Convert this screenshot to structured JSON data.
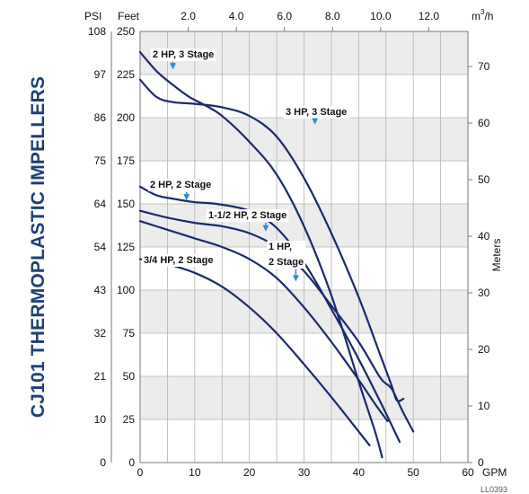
{
  "chart_data": {
    "type": "line",
    "title": "CJ101 THERMOPLASTIC IMPELLERS",
    "figure_id": "LL0393",
    "grid": true,
    "x_axis": {
      "unit": "GPM",
      "range": [
        0,
        60
      ],
      "ticks": [
        "0",
        "10",
        "20",
        "30",
        "40",
        "50",
        "60"
      ]
    },
    "top_axis": {
      "unit": "m3/h",
      "unit_main": "m",
      "unit_sup": "3",
      "unit_rest": "/h",
      "ticks": [
        "2.0",
        "4.0",
        "6.0",
        "8.0",
        "10.0",
        "12.0"
      ],
      "tick_values": [
        2,
        4,
        6,
        8,
        10,
        12
      ]
    },
    "y_axis_feet": {
      "unit": "Feet",
      "range": [
        0,
        250
      ],
      "ticks": [
        "0",
        "25",
        "50",
        "75",
        "100",
        "125",
        "150",
        "175",
        "200",
        "225",
        "250"
      ]
    },
    "y_axis_psi": {
      "unit": "PSI",
      "ticks": [
        "0",
        "10",
        "21",
        "32",
        "43",
        "54",
        "64",
        "75",
        "86",
        "97",
        "108"
      ]
    },
    "y_axis_meters": {
      "unit": "Meters",
      "ticks": [
        "0",
        "10",
        "20",
        "30",
        "40",
        "50",
        "60",
        "70"
      ],
      "tick_values": [
        0,
        10,
        20,
        30,
        40,
        50,
        60,
        70
      ]
    },
    "series": [
      {
        "name": "2 HP, 3 Stage",
        "x": [
          0,
          3,
          6,
          9,
          12,
          15,
          20,
          25,
          30,
          35,
          40,
          43,
          44.3
        ],
        "y": [
          238,
          227,
          219,
          212,
          207,
          201,
          186,
          167,
          137,
          97,
          47,
          18,
          3
        ]
      },
      {
        "name": "3 HP, 3 Stage",
        "x": [
          0,
          3,
          6,
          10,
          15,
          20,
          25,
          30,
          35,
          40,
          44,
          46,
          47,
          48.2
        ],
        "y": [
          222,
          212,
          209,
          208,
          206,
          201,
          189,
          165,
          133,
          96,
          62,
          45,
          36,
          37
        ]
      },
      {
        "name": "2 HP, 2 Stage",
        "x": [
          0,
          3,
          6,
          10,
          14,
          20,
          25,
          30,
          35,
          40,
          44,
          47.5
        ],
        "y": [
          160,
          155,
          153,
          151,
          150,
          146,
          136,
          116,
          89,
          60,
          35,
          12
        ]
      },
      {
        "name": "1-1/2 HP, 2 Stage",
        "x": [
          0,
          5,
          10,
          15,
          20,
          25,
          30,
          35,
          40,
          44,
          46,
          48,
          50
        ],
        "y": [
          146,
          142,
          139,
          137,
          133,
          125,
          111,
          91,
          70,
          49,
          43,
          30,
          18
        ]
      },
      {
        "name": "1 HP, 2 Stage",
        "x": [
          0,
          5,
          10,
          15,
          20,
          25,
          30,
          35,
          40,
          43,
          45.3
        ],
        "y": [
          140,
          135,
          130,
          125,
          118,
          107,
          90,
          70,
          48,
          34,
          24
        ]
      },
      {
        "name": "3/4 HP, 2 Stage",
        "x": [
          0,
          5,
          10,
          15,
          20,
          25,
          30,
          35,
          40,
          42
        ],
        "y": [
          118,
          115,
          110,
          102,
          90,
          75,
          57,
          38,
          18,
          10
        ]
      }
    ],
    "annotations": [
      {
        "series": "2 HP, 3 Stage",
        "text": "2 HP, 3 Stage",
        "arrow_to": [
          6,
          228
        ]
      },
      {
        "series": "3 HP, 3 Stage",
        "text": "3 HP, 3 Stage",
        "arrow_to": [
          32,
          196
        ]
      },
      {
        "series": "2 HP, 2 Stage",
        "text": "2 HP, 2 Stage",
        "arrow_to": [
          8.5,
          152
        ]
      },
      {
        "series": "1-1/2 HP, 2 Stage",
        "text": "1-1/2 HP, 2 Stage",
        "arrow_to": [
          23,
          134
        ]
      },
      {
        "series": "1 HP, 2 Stage",
        "text": "1 HP,",
        "text2": "2 Stage",
        "arrow_to": [
          28.5,
          105
        ]
      },
      {
        "series": "3/4 HP, 2 Stage",
        "text": "3/4 HP, 2 Stage",
        "arrow_to": null
      }
    ],
    "colors": {
      "curve": "#1a2b6d",
      "arrow": "#2a8ed1",
      "band": "#ececec",
      "grid": "#b4b4b4",
      "title": "#1f3f7a"
    }
  }
}
